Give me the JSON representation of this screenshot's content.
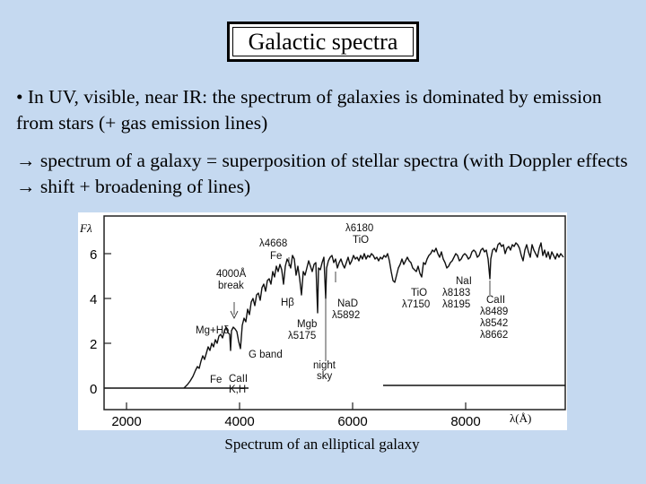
{
  "slide": {
    "title": "Galactic spectra",
    "bullet1": "• In UV, visible, near IR: the spectrum of galaxies is dominated by emission from stars (+ gas emission lines)",
    "bullet2": "→ spectrum of a galaxy = superposition of stellar spectra (with Doppler effects → shift + broadening of lines)",
    "caption": "Spectrum of an elliptical galaxy"
  },
  "colors": {
    "background": "#c5d9f0",
    "title_box": "#ffffff",
    "ink": "#000000"
  },
  "figure": {
    "y_axis_label": "Fλ",
    "x_axis_label": "λ(Å)",
    "x_ticks": [
      "2000",
      "4000",
      "6000",
      "8000"
    ],
    "y_ticks": [
      "0",
      "2",
      "4",
      "6"
    ],
    "annotations": [
      {
        "id": "lambda-4668",
        "lines": [
          "λ4668",
          "Fe"
        ]
      },
      {
        "id": "break-4000",
        "lines": [
          "4000Å",
          "break"
        ]
      },
      {
        "id": "mg-h",
        "lines": [
          "Mg+Hδ"
        ]
      },
      {
        "id": "h-beta",
        "lines": [
          "Hβ"
        ]
      },
      {
        "id": "g-band",
        "lines": [
          "G band"
        ]
      },
      {
        "id": "fe-low",
        "lines": [
          "Fe"
        ]
      },
      {
        "id": "ca-ii-kh",
        "lines": [
          "CaII",
          "K,H"
        ]
      },
      {
        "id": "mgb",
        "lines": [
          "Mgb",
          "λ5175"
        ]
      },
      {
        "id": "night-sky",
        "lines": [
          "night",
          "sky"
        ]
      },
      {
        "id": "nad",
        "lines": [
          "NaD",
          "λ5892"
        ]
      },
      {
        "id": "tio-6180",
        "lines": [
          "λ6180",
          "TiO"
        ]
      },
      {
        "id": "tio-7150",
        "lines": [
          "TiO",
          "λ7150"
        ]
      },
      {
        "id": "nai",
        "lines": [
          "NaI",
          "λ8183",
          "λ8195"
        ]
      },
      {
        "id": "ca-ii-triplet",
        "lines": [
          "CaII",
          "λ8489",
          "λ8542",
          "λ8662"
        ]
      }
    ]
  }
}
